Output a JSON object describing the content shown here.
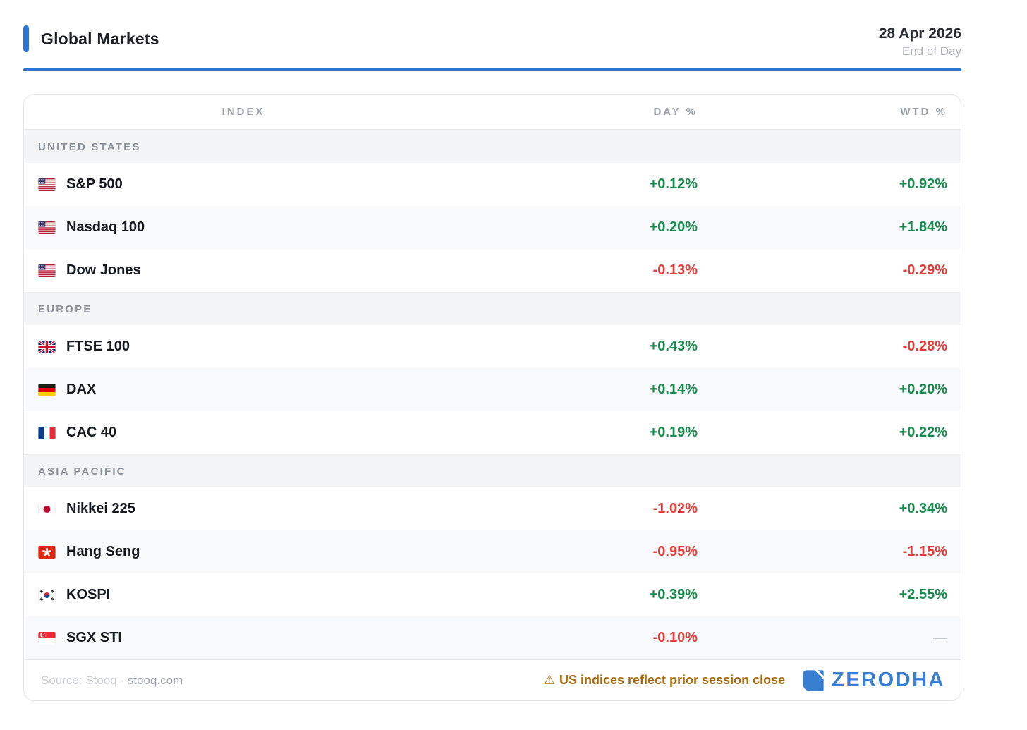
{
  "header": {
    "title": "Global Markets",
    "date": "28 Apr 2026",
    "session": "End of Day"
  },
  "table": {
    "columns": [
      "INDEX",
      "DAY %",
      "WTD %"
    ],
    "sections": [
      {
        "label": "UNITED STATES",
        "rows": [
          {
            "flag": "us",
            "name": "S&P 500",
            "day": "+0.12%",
            "wtd": "+0.92%"
          },
          {
            "flag": "us",
            "name": "Nasdaq 100",
            "day": "+0.20%",
            "wtd": "+1.84%"
          },
          {
            "flag": "us",
            "name": "Dow Jones",
            "day": "-0.13%",
            "wtd": "-0.29%"
          }
        ]
      },
      {
        "label": "EUROPE",
        "rows": [
          {
            "flag": "gb",
            "name": "FTSE 100",
            "day": "+0.43%",
            "wtd": "-0.28%"
          },
          {
            "flag": "de",
            "name": "DAX",
            "day": "+0.14%",
            "wtd": "+0.20%"
          },
          {
            "flag": "fr",
            "name": "CAC 40",
            "day": "+0.19%",
            "wtd": "+0.22%"
          }
        ]
      },
      {
        "label": "ASIA PACIFIC",
        "rows": [
          {
            "flag": "jp",
            "name": "Nikkei 225",
            "day": "-1.02%",
            "wtd": "+0.34%"
          },
          {
            "flag": "hk",
            "name": "Hang Seng",
            "day": "-0.95%",
            "wtd": "-1.15%"
          },
          {
            "flag": "kr",
            "name": "KOSPI",
            "day": "+0.39%",
            "wtd": "+2.55%"
          },
          {
            "flag": "sg",
            "name": "SGX STI",
            "day": "-0.10%",
            "wtd": "—"
          }
        ]
      }
    ]
  },
  "footer": {
    "source_prefix": "Source: Stooq · ",
    "source_domain": "stooq.com",
    "warning_icon": "⚠",
    "warning_text": "US indices reflect prior session close",
    "brand_name": "ZERODHA"
  },
  "colors": {
    "accent_blue": "#2e74d4",
    "brand_blue": "#387ed1",
    "positive_green": "#178a4e",
    "negative_red": "#e03d38",
    "warning_amber": "#a96a0c"
  }
}
